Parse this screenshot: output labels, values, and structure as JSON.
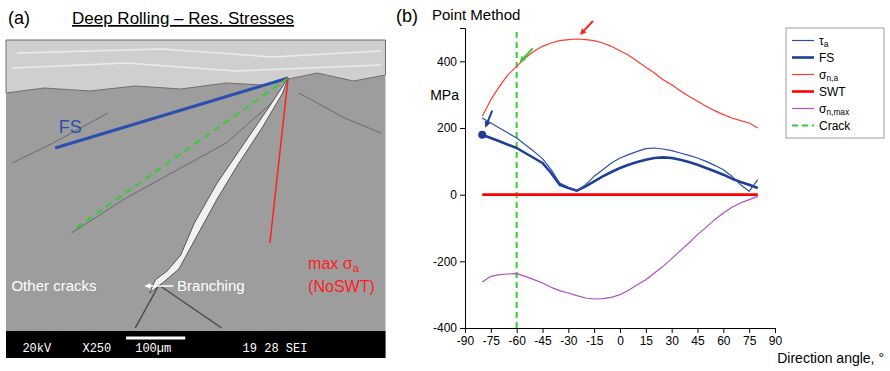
{
  "panel_a": {
    "letter": "(a)",
    "title": "Deep Rolling – Res. Stresses",
    "annotations": {
      "fs": "FS",
      "max_sigma": "max σa",
      "no_swt": "(NoSWT)",
      "other_cracks": "Other cracks",
      "branching": "Branching"
    },
    "info_bar": [
      "20kV",
      "X250",
      "100µm",
      "19 28 SEI"
    ]
  },
  "chart_data": {
    "type": "line",
    "panel_letter": "(b)",
    "title": "Point Method",
    "y_label": "MPa",
    "x_label": "Direction angle, °",
    "x": [
      -80,
      -75,
      -70,
      -65,
      -60,
      -55,
      -50,
      -45,
      -40,
      -35,
      -30,
      -25,
      -20,
      -15,
      -10,
      -5,
      0,
      5,
      10,
      15,
      20,
      25,
      30,
      35,
      40,
      45,
      50,
      55,
      60,
      65,
      70,
      75,
      80
    ],
    "xlim": [
      -90,
      90
    ],
    "xticks": [
      -90,
      -75,
      -60,
      -45,
      -30,
      -15,
      0,
      15,
      30,
      45,
      60,
      75,
      90
    ],
    "ylim": [
      -400,
      500
    ],
    "yticks": [
      -400,
      -200,
      0,
      200,
      400
    ],
    "grid": false,
    "legend": "right",
    "series": [
      {
        "name": "τa",
        "color": "#2b4fae",
        "line_style": "solid",
        "values": [
          230,
          215,
          200,
          185,
          170,
          150,
          130,
          108,
          75,
          35,
          22,
          12,
          30,
          55,
          75,
          95,
          110,
          120,
          130,
          138,
          140,
          137,
          132,
          125,
          118,
          110,
          100,
          88,
          75,
          55,
          30,
          10,
          45
        ]
      },
      {
        "name": "FS",
        "color": "#1f3f96",
        "line_style": "thick",
        "values": [
          180,
          170,
          160,
          150,
          140,
          125,
          110,
          95,
          65,
          30,
          20,
          12,
          25,
          40,
          55,
          68,
          80,
          90,
          98,
          105,
          110,
          112,
          110,
          105,
          98,
          90,
          80,
          70,
          60,
          48,
          38,
          30,
          20
        ]
      },
      {
        "name": "σn,a",
        "color": "#ff3b2f",
        "line_style": "solid",
        "values": [
          235,
          285,
          325,
          360,
          385,
          410,
          430,
          445,
          455,
          462,
          465,
          467,
          465,
          462,
          455,
          445,
          432,
          418,
          400,
          382,
          365,
          345,
          330,
          312,
          295,
          280,
          265,
          252,
          240,
          230,
          222,
          215,
          200
        ]
      },
      {
        "name": "SWT",
        "color": "#ff0000",
        "line_style": "thick",
        "values": [
          0,
          0,
          0,
          0,
          0,
          0,
          0,
          0,
          0,
          0,
          0,
          0,
          0,
          0,
          0,
          0,
          0,
          0,
          0,
          0,
          0,
          0,
          0,
          0,
          0,
          0,
          0,
          0,
          0,
          0,
          0,
          0,
          0
        ]
      },
      {
        "name": "σn,max",
        "color": "#b04fc0",
        "line_style": "solid",
        "values": [
          -262,
          -245,
          -240,
          -238,
          -237,
          -245,
          -255,
          -265,
          -278,
          -288,
          -295,
          -303,
          -310,
          -313,
          -312,
          -308,
          -300,
          -287,
          -270,
          -255,
          -235,
          -215,
          -192,
          -168,
          -145,
          -120,
          -98,
          -75,
          -55,
          -38,
          -25,
          -15,
          -5
        ]
      },
      {
        "name": "Crack",
        "type": "vline",
        "color": "#33cc33",
        "line_style": "dashed",
        "x": -60
      }
    ]
  }
}
